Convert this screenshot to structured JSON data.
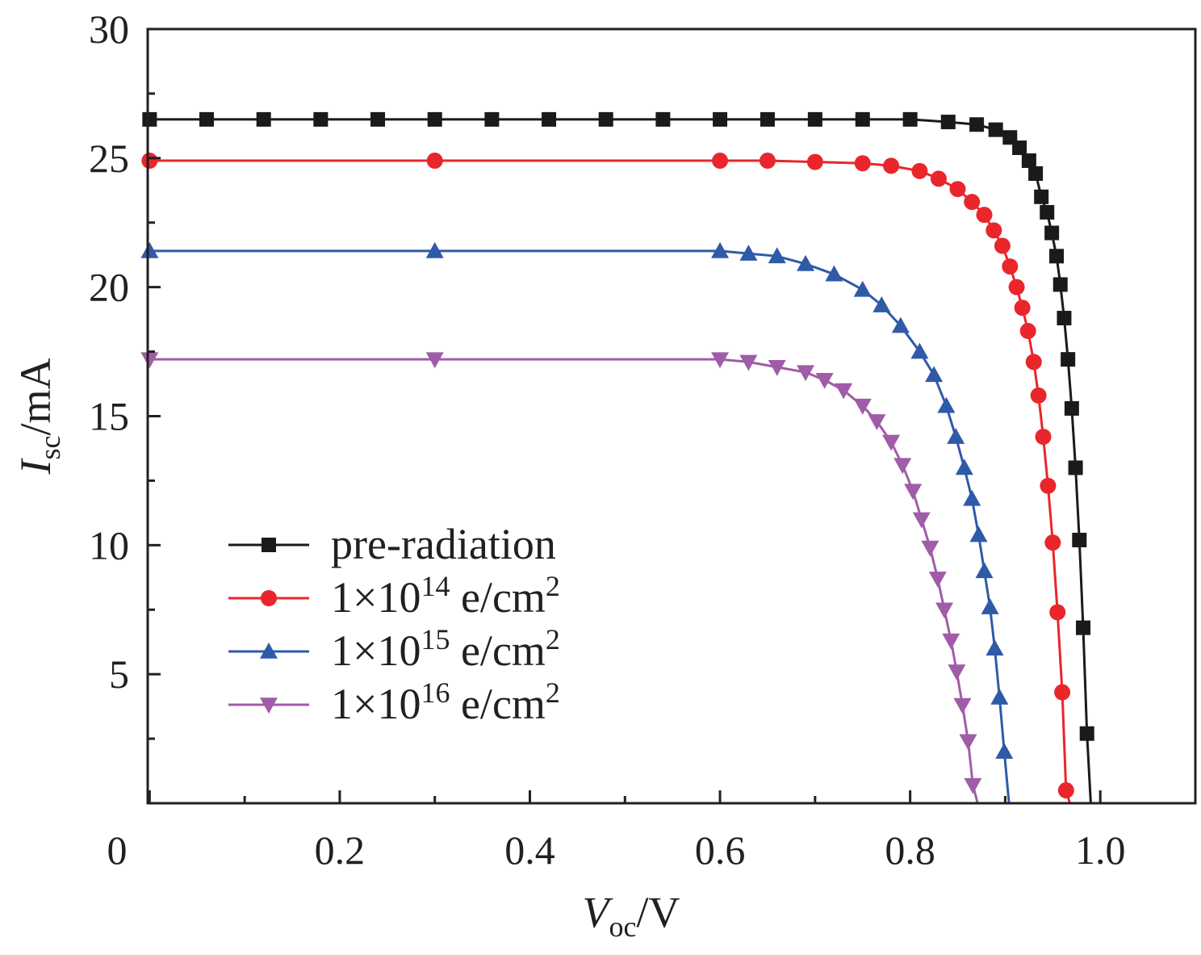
{
  "chart_data": {
    "type": "line",
    "title": "",
    "xlabel": {
      "main": "V",
      "sub": "oc",
      "unit": "/V"
    },
    "ylabel": {
      "main": "I",
      "sub": "sc",
      "unit": "/mA"
    },
    "xlim": [
      -0.002,
      1.1
    ],
    "ylim": [
      0,
      30
    ],
    "x_ticks": [
      {
        "value": 0,
        "label": "0"
      },
      {
        "value": 0.2,
        "label": "0.2"
      },
      {
        "value": 0.4,
        "label": "0.4"
      },
      {
        "value": 0.6,
        "label": "0.6"
      },
      {
        "value": 0.8,
        "label": "0.8"
      },
      {
        "value": 1.0,
        "label": "1.0"
      }
    ],
    "x_minor_ticks": [
      0.1,
      0.3,
      0.5,
      0.7,
      0.9,
      1.1
    ],
    "y_ticks": [
      {
        "value": 5,
        "label": "5"
      },
      {
        "value": 10,
        "label": "10"
      },
      {
        "value": 15,
        "label": "15"
      },
      {
        "value": 20,
        "label": "20"
      },
      {
        "value": 25,
        "label": "25"
      },
      {
        "value": 30,
        "label": "30"
      }
    ],
    "y_minor_ticks": [
      2.5,
      7.5,
      12.5,
      17.5,
      22.5,
      27.5
    ],
    "legend_position": "bottom-left",
    "series": [
      {
        "name": "pre-radiation",
        "legend": {
          "text": "pre-radiation",
          "sup": "",
          "after": ""
        },
        "color": "#1a1a1a",
        "marker": "square",
        "x": [
          0.0,
          0.06,
          0.12,
          0.18,
          0.24,
          0.3,
          0.36,
          0.42,
          0.48,
          0.54,
          0.6,
          0.65,
          0.7,
          0.75,
          0.8,
          0.84,
          0.87,
          0.89,
          0.905,
          0.915,
          0.925,
          0.932,
          0.938,
          0.944,
          0.949,
          0.954,
          0.958,
          0.962,
          0.966,
          0.97,
          0.974,
          0.978,
          0.982,
          0.986,
          0.99,
          0.994
        ],
        "y": [
          26.5,
          26.5,
          26.5,
          26.5,
          26.5,
          26.5,
          26.5,
          26.5,
          26.5,
          26.5,
          26.5,
          26.5,
          26.5,
          26.5,
          26.5,
          26.4,
          26.3,
          26.1,
          25.8,
          25.4,
          24.9,
          24.4,
          23.5,
          22.9,
          22.1,
          21.2,
          20.1,
          18.8,
          17.2,
          15.3,
          13.0,
          10.2,
          6.8,
          2.7,
          0.0,
          0.0
        ]
      },
      {
        "name": "1×10^14 e/cm^2",
        "legend": {
          "text": "1×10",
          "sup": "14",
          "after": " e/cm",
          "sup2": "2"
        },
        "color": "#e8262b",
        "marker": "circle",
        "x": [
          0.0,
          0.3,
          0.6,
          0.65,
          0.7,
          0.75,
          0.78,
          0.81,
          0.83,
          0.85,
          0.865,
          0.878,
          0.888,
          0.897,
          0.905,
          0.912,
          0.918,
          0.924,
          0.93,
          0.935,
          0.94,
          0.945,
          0.95,
          0.955,
          0.96,
          0.964,
          0.968,
          0.972,
          0.976
        ],
        "y": [
          24.9,
          24.9,
          24.9,
          24.9,
          24.85,
          24.8,
          24.7,
          24.5,
          24.2,
          23.8,
          23.3,
          22.8,
          22.2,
          21.6,
          20.8,
          20.0,
          19.2,
          18.3,
          17.1,
          15.8,
          14.2,
          12.3,
          10.1,
          7.4,
          4.3,
          0.5,
          0.0,
          0.0,
          0.0
        ]
      },
      {
        "name": "1×10^15 e/cm^2",
        "legend": {
          "text": "1×10",
          "sup": "15",
          "after": " e/cm",
          "sup2": "2"
        },
        "color": "#2f5aa8",
        "marker": "triangle-up",
        "x": [
          0.0,
          0.3,
          0.6,
          0.63,
          0.66,
          0.69,
          0.72,
          0.75,
          0.77,
          0.79,
          0.81,
          0.825,
          0.838,
          0.848,
          0.857,
          0.865,
          0.872,
          0.878,
          0.884,
          0.889,
          0.894,
          0.899,
          0.904,
          0.909,
          0.913
        ],
        "y": [
          21.4,
          21.4,
          21.4,
          21.3,
          21.2,
          20.9,
          20.5,
          19.9,
          19.3,
          18.5,
          17.5,
          16.6,
          15.4,
          14.2,
          13.0,
          11.8,
          10.4,
          9.0,
          7.6,
          6.0,
          4.1,
          2.0,
          0.0,
          0.0,
          0.0
        ]
      },
      {
        "name": "1×10^16 e/cm^2",
        "legend": {
          "text": "1×10",
          "sup": "16",
          "after": " e/cm",
          "sup2": "2"
        },
        "color": "#a05ca8",
        "marker": "triangle-down",
        "x": [
          0.0,
          0.3,
          0.6,
          0.63,
          0.66,
          0.69,
          0.71,
          0.73,
          0.75,
          0.765,
          0.78,
          0.792,
          0.803,
          0.812,
          0.821,
          0.829,
          0.836,
          0.843,
          0.849,
          0.855,
          0.861,
          0.866,
          0.871,
          0.876,
          0.881
        ],
        "y": [
          17.2,
          17.2,
          17.2,
          17.1,
          16.9,
          16.7,
          16.4,
          16.0,
          15.4,
          14.8,
          14.0,
          13.1,
          12.1,
          11.0,
          9.9,
          8.7,
          7.5,
          6.3,
          5.1,
          3.8,
          2.4,
          0.7,
          0.0,
          0.0,
          0.0
        ]
      }
    ]
  }
}
